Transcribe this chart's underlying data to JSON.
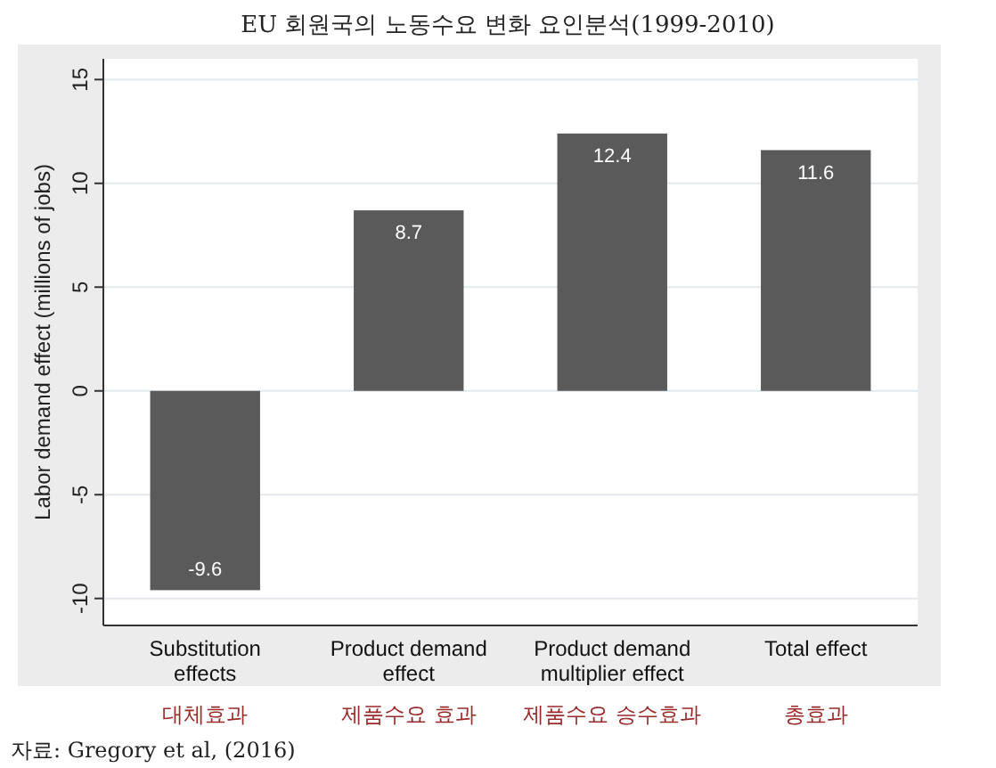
{
  "chart_data": {
    "type": "bar",
    "title": "EU 회원국의 노동수요 변화 요인분석(1999-2010)",
    "ylabel": "Labor demand effect (millions of jobs)",
    "categories": [
      "Substitution effects",
      "Product demand effect",
      "Product demand multiplier effect",
      "Total effect"
    ],
    "values": [
      -9.6,
      8.7,
      12.4,
      11.6
    ],
    "color": "#5a5a5a",
    "data_labels": true,
    "ylim": [
      -11.3,
      16
    ],
    "yticks": [
      -10,
      -5,
      0,
      5,
      10,
      15
    ],
    "grid": "y",
    "annotations": [
      "대체효과",
      "제품수요 효과",
      "제품수요 승수효과",
      "총효과",
      "자료: Gregory et al, (2016)"
    ]
  }
}
